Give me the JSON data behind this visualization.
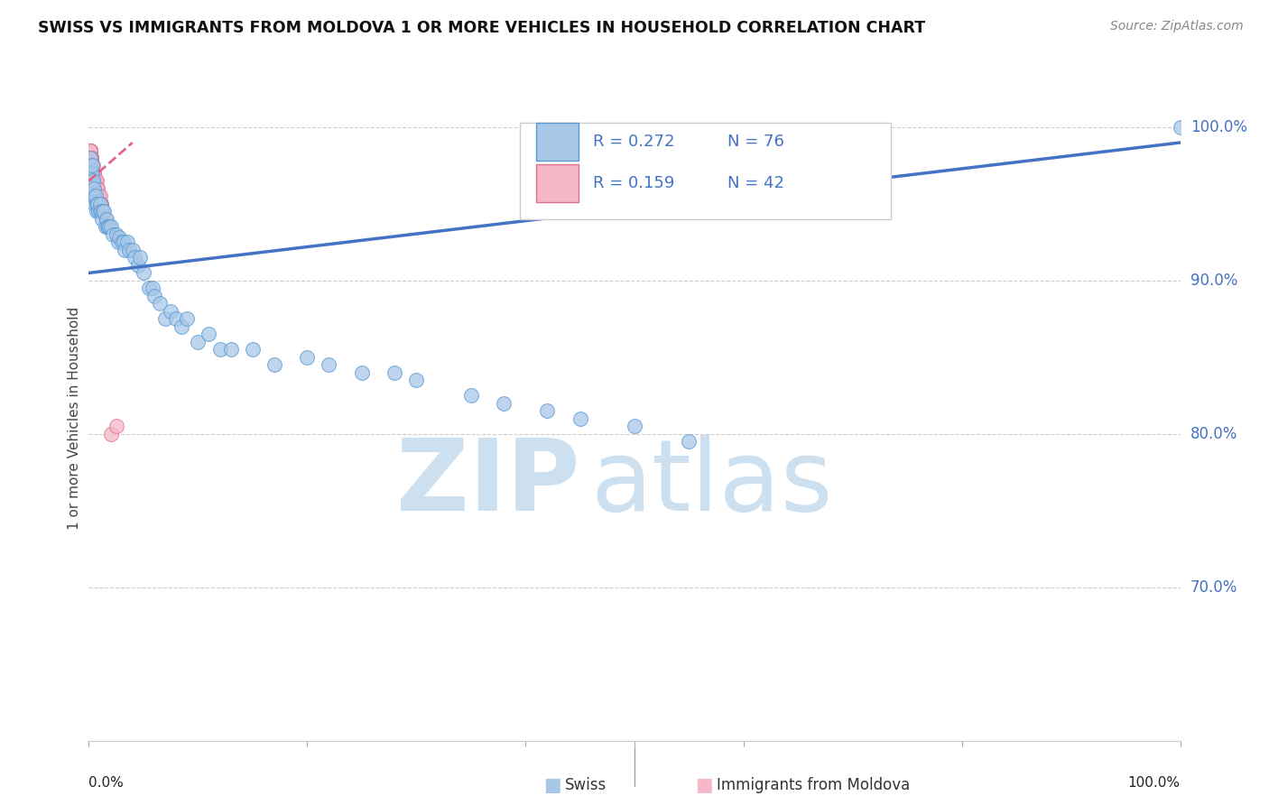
{
  "title": "SWISS VS IMMIGRANTS FROM MOLDOVA 1 OR MORE VEHICLES IN HOUSEHOLD CORRELATION CHART",
  "source": "Source: ZipAtlas.com",
  "ylabel": "1 or more Vehicles in Household",
  "legend_swiss_R": "R = 0.272",
  "legend_swiss_N": "N = 76",
  "legend_moldova_R": "R = 0.159",
  "legend_moldova_N": "N = 42",
  "ytick_labels": [
    "100.0%",
    "90.0%",
    "80.0%",
    "70.0%"
  ],
  "ytick_positions": [
    1.0,
    0.9,
    0.8,
    0.7
  ],
  "swiss_color": "#a8c8e8",
  "moldova_color": "#f4b8c8",
  "swiss_edge_color": "#5b9bd5",
  "moldova_edge_color": "#e07090",
  "swiss_line_color": "#4472c4",
  "moldova_line_color": "#e05878",
  "swiss_x": [
    0.001,
    0.001,
    0.001,
    0.002,
    0.002,
    0.002,
    0.002,
    0.003,
    0.003,
    0.003,
    0.003,
    0.003,
    0.004,
    0.004,
    0.004,
    0.005,
    0.005,
    0.005,
    0.006,
    0.007,
    0.007,
    0.008,
    0.009,
    0.01,
    0.01,
    0.011,
    0.012,
    0.013,
    0.014,
    0.015,
    0.016,
    0.017,
    0.018,
    0.019,
    0.02,
    0.022,
    0.025,
    0.027,
    0.028,
    0.03,
    0.032,
    0.033,
    0.035,
    0.037,
    0.04,
    0.042,
    0.045,
    0.047,
    0.05,
    0.055,
    0.058,
    0.06,
    0.065,
    0.07,
    0.075,
    0.08,
    0.085,
    0.09,
    0.1,
    0.11,
    0.12,
    0.13,
    0.15,
    0.17,
    0.2,
    0.22,
    0.25,
    0.28,
    0.3,
    0.35,
    0.38,
    0.42,
    0.45,
    0.5,
    0.55,
    1.0
  ],
  "swiss_y": [
    0.97,
    0.975,
    0.98,
    0.96,
    0.965,
    0.965,
    0.97,
    0.955,
    0.96,
    0.965,
    0.97,
    0.975,
    0.955,
    0.96,
    0.965,
    0.95,
    0.955,
    0.96,
    0.955,
    0.945,
    0.95,
    0.95,
    0.945,
    0.945,
    0.95,
    0.945,
    0.94,
    0.945,
    0.945,
    0.935,
    0.94,
    0.935,
    0.935,
    0.935,
    0.935,
    0.93,
    0.93,
    0.925,
    0.928,
    0.925,
    0.925,
    0.92,
    0.925,
    0.92,
    0.92,
    0.915,
    0.91,
    0.915,
    0.905,
    0.895,
    0.895,
    0.89,
    0.885,
    0.875,
    0.88,
    0.875,
    0.87,
    0.875,
    0.86,
    0.865,
    0.855,
    0.855,
    0.855,
    0.845,
    0.85,
    0.845,
    0.84,
    0.84,
    0.835,
    0.825,
    0.82,
    0.815,
    0.81,
    0.805,
    0.795,
    1.0
  ],
  "moldova_x": [
    0.001,
    0.001,
    0.001,
    0.001,
    0.001,
    0.001,
    0.001,
    0.001,
    0.001,
    0.002,
    0.002,
    0.002,
    0.002,
    0.002,
    0.003,
    0.003,
    0.003,
    0.003,
    0.004,
    0.004,
    0.004,
    0.004,
    0.005,
    0.005,
    0.005,
    0.006,
    0.006,
    0.007,
    0.007,
    0.007,
    0.008,
    0.008,
    0.009,
    0.009,
    0.01,
    0.01,
    0.011,
    0.011,
    0.012,
    0.015,
    0.02,
    0.025
  ],
  "moldova_y": [
    0.98,
    0.985,
    0.985,
    0.985,
    0.985,
    0.985,
    0.985,
    0.985,
    0.985,
    0.98,
    0.98,
    0.98,
    0.98,
    0.98,
    0.975,
    0.975,
    0.975,
    0.975,
    0.975,
    0.97,
    0.97,
    0.97,
    0.97,
    0.97,
    0.965,
    0.965,
    0.965,
    0.965,
    0.96,
    0.96,
    0.96,
    0.96,
    0.955,
    0.955,
    0.955,
    0.95,
    0.95,
    0.95,
    0.945,
    0.94,
    0.8,
    0.805
  ],
  "xlim": [
    0.0,
    1.0
  ],
  "ylim": [
    0.6,
    1.02
  ],
  "swiss_line_x0": 0.0,
  "swiss_line_x1": 1.0,
  "swiss_line_y0": 0.905,
  "swiss_line_y1": 0.99,
  "moldova_line_x0": 0.0,
  "moldova_line_x1": 0.04,
  "moldova_line_y0": 0.965,
  "moldova_line_y1": 0.99
}
